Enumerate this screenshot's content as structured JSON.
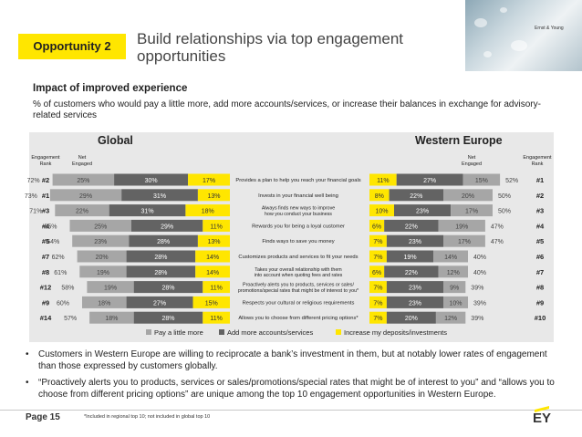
{
  "header": {
    "badge": "Opportunity 2",
    "title": "Build relationships via top engagement opportunities",
    "brand_text": "Ernst & Young"
  },
  "subheading": "Impact of improved experience",
  "description": "% of customers who would pay a little more, add more accounts/services, or increase their balances in exchange for advisory-related services",
  "chart_data": {
    "type": "bar",
    "groups": [
      "Global",
      "Western Europe"
    ],
    "column_headers": {
      "left_rank": "Engagement Rank",
      "left_net": "Net Engaged",
      "right_net": "Net Engaged",
      "right_rank": "Engagement Rank"
    },
    "categories": [
      "Provides a plan to help you reach your financial goals",
      "Invests in your financial well being",
      "Always finds new ways to improve how you conduct your business",
      "Rewards you for being a loyal customer",
      "Finds ways to save you money",
      "Customizes products and services to fit your needs",
      "Takes your overall relationship with them into account when quoting fees and rates",
      "Proactively alerts you to products, services or sales/ promotions/special rates that might be of interest to you*",
      "Respects your cultural or religious requirements",
      "Allows you to choose from different pricing options*"
    ],
    "series_names": [
      "Pay a little more",
      "Add more accounts/services",
      "Increase my deposits/investments"
    ],
    "series_colors": [
      "#a6a6a6",
      "#636363",
      "#ffe600"
    ],
    "global": {
      "rank": [
        "#2",
        "#1",
        "#3",
        "#4",
        "#5",
        "#7",
        "#8",
        "#12",
        "#9",
        "#14"
      ],
      "net": [
        "72%",
        "73%",
        "71%",
        "65%",
        "64%",
        "62%",
        "61%",
        "58%",
        "60%",
        "57%"
      ],
      "pay": [
        25,
        29,
        22,
        25,
        23,
        20,
        19,
        19,
        18,
        18
      ],
      "add": [
        30,
        31,
        31,
        29,
        28,
        28,
        28,
        28,
        27,
        28
      ],
      "increase": [
        17,
        13,
        18,
        11,
        13,
        14,
        14,
        11,
        15,
        11
      ]
    },
    "western_europe": {
      "rank": [
        "#1",
        "#2",
        "#3",
        "#4",
        "#5",
        "#6",
        "#7",
        "#8",
        "#9",
        "#10"
      ],
      "net": [
        "52%",
        "50%",
        "50%",
        "47%",
        "47%",
        "40%",
        "40%",
        "39%",
        "39%",
        "39%"
      ],
      "increase": [
        11,
        8,
        10,
        6,
        7,
        7,
        6,
        7,
        7,
        7
      ],
      "add": [
        27,
        22,
        23,
        22,
        23,
        19,
        22,
        23,
        23,
        20
      ],
      "pay": [
        15,
        20,
        17,
        19,
        17,
        14,
        12,
        9,
        10,
        12
      ]
    },
    "legend_position": "bottom"
  },
  "bullets": [
    "Customers in Western Europe are willing to reciprocate a bank’s investment in them, but at notably lower rates of engagement than those expressed by customers globally.",
    "“Proactively alerts you to products, services or sales/promotions/special rates that might be of interest to you” and “allows you to choose from different pricing options” are unique among the top 10 engagement opportunities in Western Europe."
  ],
  "footer": {
    "page": "Page 15",
    "footnote": "*Included in regional top 10; not included in global top 10",
    "logo": "EY"
  }
}
